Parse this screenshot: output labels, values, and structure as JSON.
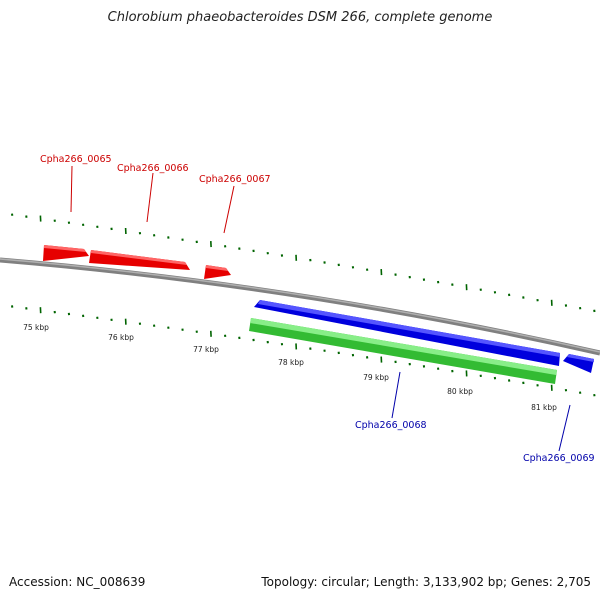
{
  "title": "Chlorobium phaeobacteroides DSM 266, complete genome",
  "footer": {
    "accession": "Accession: NC_008639",
    "summary": "Topology: circular; Length: 3,133,902 bp; Genes: 2,705"
  },
  "scale_labels": [
    "75 kbp",
    "76 kbp",
    "77 kbp",
    "78 kbp",
    "79 kbp",
    "80 kbp",
    "81 kbp"
  ],
  "genes": [
    {
      "id": "Cpha266_0065",
      "strand": "+",
      "track": "forward",
      "color": "#ff0000"
    },
    {
      "id": "Cpha266_0066",
      "strand": "+",
      "track": "forward",
      "color": "#ff0000"
    },
    {
      "id": "Cpha266_0067",
      "strand": "+",
      "track": "forward",
      "color": "#ff0000"
    },
    {
      "id": "Cpha266_0068",
      "strand": "-",
      "track": "reverse",
      "color": "#0000ff"
    },
    {
      "id": "Cpha266_0069",
      "strand": "-",
      "track": "reverse",
      "color": "#0000ff"
    }
  ],
  "colors": {
    "forward_cds": "#ff0000",
    "reverse_cds": "#0000ff",
    "feature_track": "#33cc33",
    "backbone": "#808080",
    "ticks": "#006400",
    "forward_label": "#cc0000",
    "reverse_label": "#0000aa"
  }
}
